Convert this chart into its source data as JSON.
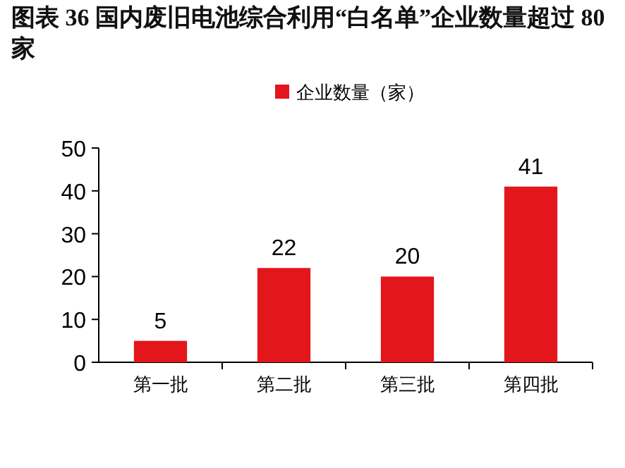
{
  "chart_data": {
    "type": "bar",
    "title": "图表 36  国内废旧电池综合利用“白名单”企业数量超过 80 家",
    "categories": [
      "第一批",
      "第二批",
      "第三批",
      "第四批"
    ],
    "series": [
      {
        "name": "企业数量（家）",
        "color": "#e3161c",
        "values": [
          5,
          22,
          20,
          41
        ]
      }
    ],
    "ylim": [
      0,
      50
    ],
    "yticks": [
      0,
      10,
      20,
      30,
      40,
      50
    ],
    "data_labels": true,
    "legend": "top",
    "grid": false
  }
}
